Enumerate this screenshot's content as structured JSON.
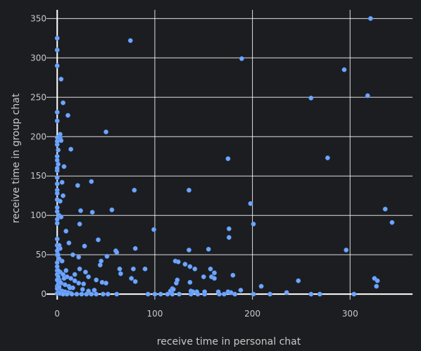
{
  "chart_data": {
    "type": "scatter",
    "xlabel": "receive time in personal chat",
    "ylabel": "receive time in group chat",
    "xlim": [
      -11,
      364
    ],
    "ylim": [
      -7,
      361
    ],
    "xticks": [
      0,
      100,
      200,
      300
    ],
    "yticks": [
      0,
      50,
      100,
      150,
      200,
      250,
      300,
      350
    ],
    "grid": true,
    "marker_color": "#6ea6ff",
    "background": "#1c1d20",
    "points": [
      [
        0,
        325
      ],
      [
        0,
        310
      ],
      [
        0,
        290
      ],
      [
        4,
        273
      ],
      [
        75,
        322
      ],
      [
        189,
        299
      ],
      [
        321,
        350
      ],
      [
        294,
        285
      ],
      [
        260,
        249
      ],
      [
        318,
        252
      ],
      [
        6,
        243
      ],
      [
        0,
        231
      ],
      [
        11,
        227
      ],
      [
        0,
        220
      ],
      [
        50,
        206
      ],
      [
        3,
        203
      ],
      [
        3,
        198
      ],
      [
        4,
        195
      ],
      [
        0,
        190
      ],
      [
        1,
        183
      ],
      [
        14,
        184
      ],
      [
        0,
        175
      ],
      [
        277,
        173
      ],
      [
        175,
        172
      ],
      [
        7,
        162
      ],
      [
        0,
        157
      ],
      [
        21,
        138
      ],
      [
        35,
        143
      ],
      [
        0,
        148
      ],
      [
        0,
        140
      ],
      [
        5,
        142
      ],
      [
        0,
        132
      ],
      [
        79,
        132
      ],
      [
        135,
        132
      ],
      [
        6,
        125
      ],
      [
        0,
        120
      ],
      [
        3,
        118
      ],
      [
        0,
        105
      ],
      [
        24,
        106
      ],
      [
        36,
        104
      ],
      [
        56,
        107
      ],
      [
        2,
        100
      ],
      [
        0,
        95
      ],
      [
        4,
        98
      ],
      [
        0,
        90
      ],
      [
        23,
        89
      ],
      [
        198,
        115
      ],
      [
        201,
        89
      ],
      [
        336,
        108
      ],
      [
        343,
        91
      ],
      [
        9,
        80
      ],
      [
        99,
        82
      ],
      [
        176,
        83
      ],
      [
        176,
        72
      ],
      [
        42,
        69
      ],
      [
        12,
        65
      ],
      [
        0,
        62
      ],
      [
        3,
        58
      ],
      [
        2,
        62
      ],
      [
        28,
        61
      ],
      [
        60,
        55
      ],
      [
        61,
        53
      ],
      [
        135,
        56
      ],
      [
        155,
        57
      ],
      [
        296,
        56
      ],
      [
        0,
        50
      ],
      [
        51,
        48
      ],
      [
        16,
        50
      ],
      [
        22,
        47
      ],
      [
        45,
        42
      ],
      [
        44,
        37
      ],
      [
        80,
        58
      ],
      [
        0,
        40
      ],
      [
        5,
        42
      ],
      [
        121,
        42
      ],
      [
        124,
        41
      ],
      [
        131,
        38
      ],
      [
        136,
        35
      ],
      [
        141,
        32
      ],
      [
        157,
        32
      ],
      [
        161,
        27
      ],
      [
        180,
        24
      ],
      [
        64,
        32
      ],
      [
        65,
        26
      ],
      [
        78,
        32
      ],
      [
        90,
        32
      ],
      [
        23,
        32
      ],
      [
        29,
        28
      ],
      [
        32,
        22
      ],
      [
        40,
        18
      ],
      [
        46,
        15
      ],
      [
        50,
        14
      ],
      [
        76,
        20
      ],
      [
        80,
        16
      ],
      [
        0,
        30
      ],
      [
        3,
        28
      ],
      [
        6,
        25
      ],
      [
        10,
        22
      ],
      [
        14,
        20
      ],
      [
        18,
        17
      ],
      [
        22,
        14
      ],
      [
        2,
        18
      ],
      [
        4,
        14
      ],
      [
        8,
        12
      ],
      [
        12,
        10
      ],
      [
        16,
        8
      ],
      [
        0,
        10
      ],
      [
        2,
        6
      ],
      [
        5,
        4
      ],
      [
        8,
        3
      ],
      [
        11,
        2
      ],
      [
        14,
        1
      ],
      [
        1,
        2
      ],
      [
        0,
        1
      ],
      [
        3,
        1
      ],
      [
        6,
        0
      ],
      [
        10,
        0
      ],
      [
        15,
        0
      ],
      [
        20,
        0
      ],
      [
        25,
        0
      ],
      [
        30,
        0
      ],
      [
        35,
        0
      ],
      [
        40,
        0
      ],
      [
        47,
        0
      ],
      [
        52,
        0
      ],
      [
        61,
        0
      ],
      [
        93,
        0
      ],
      [
        100,
        0
      ],
      [
        106,
        0
      ],
      [
        113,
        0
      ],
      [
        118,
        0
      ],
      [
        125,
        0
      ],
      [
        137,
        0
      ],
      [
        144,
        0
      ],
      [
        151,
        0
      ],
      [
        166,
        0
      ],
      [
        171,
        0
      ],
      [
        182,
        0
      ],
      [
        201,
        0
      ],
      [
        218,
        0
      ],
      [
        260,
        0
      ],
      [
        269,
        0
      ],
      [
        304,
        0
      ],
      [
        122,
        14
      ],
      [
        123,
        18
      ],
      [
        136,
        15
      ],
      [
        143,
        3
      ],
      [
        150,
        22
      ],
      [
        158,
        22
      ],
      [
        161,
        20
      ],
      [
        116,
        4
      ],
      [
        118,
        7
      ],
      [
        119,
        6
      ],
      [
        137,
        4
      ],
      [
        139,
        3
      ],
      [
        151,
        3
      ],
      [
        165,
        3
      ],
      [
        175,
        3
      ],
      [
        178,
        2
      ],
      [
        188,
        5
      ],
      [
        209,
        10
      ],
      [
        235,
        2
      ],
      [
        247,
        17
      ],
      [
        325,
        20
      ],
      [
        328,
        17
      ],
      [
        327,
        10
      ],
      [
        0,
        70
      ],
      [
        1,
        50
      ],
      [
        0,
        55
      ],
      [
        2,
        45
      ],
      [
        0,
        35
      ],
      [
        1,
        30
      ],
      [
        0,
        25
      ],
      [
        1,
        22
      ],
      [
        0,
        18
      ],
      [
        1,
        12
      ],
      [
        0,
        7
      ],
      [
        2,
        9
      ],
      [
        3,
        15
      ],
      [
        7,
        20
      ],
      [
        9,
        30
      ],
      [
        13,
        8
      ],
      [
        18,
        25
      ],
      [
        26,
        6
      ],
      [
        32,
        4
      ],
      [
        38,
        5
      ],
      [
        27,
        13
      ],
      [
        0,
        199
      ],
      [
        0,
        194
      ],
      [
        0,
        170
      ],
      [
        1,
        165
      ],
      [
        0,
        160
      ],
      [
        0,
        128
      ],
      [
        0,
        110
      ]
    ]
  }
}
